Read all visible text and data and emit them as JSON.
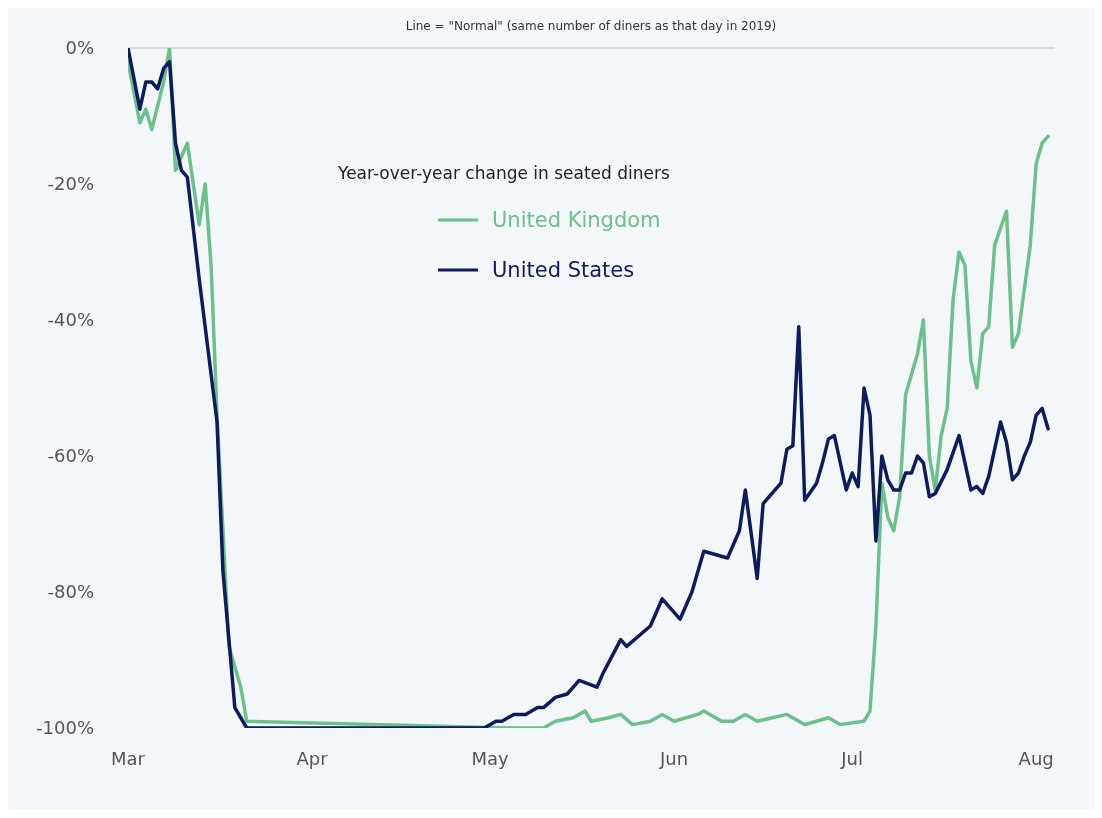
{
  "chart_data": {
    "type": "line",
    "title": "Year-over-year change in seated diners",
    "xlim": [
      "--03-01",
      "--08-04"
    ],
    "xticks": [
      {
        "value": "--03-01",
        "label": "Mar"
      },
      {
        "value": "--04-01",
        "label": "Apr"
      },
      {
        "value": "--05-01",
        "label": "May"
      },
      {
        "value": "--06-01",
        "label": "Jun"
      },
      {
        "value": "--07-01",
        "label": "Jul"
      },
      {
        "value": "--08-01",
        "label": "Aug"
      }
    ],
    "ylim": [
      -100,
      0
    ],
    "yticks": [
      {
        "value": 0,
        "label": "0%"
      },
      {
        "value": -20,
        "label": "-20%"
      },
      {
        "value": -40,
        "label": "-40%"
      },
      {
        "value": -60,
        "label": "-60%"
      },
      {
        "value": -80,
        "label": "-80%"
      },
      {
        "value": -100,
        "label": "-100%"
      }
    ],
    "ref_lines": [
      {
        "axis": "y",
        "value": 0,
        "label": "Line = \"Normal\" (same number of diners as that day in 2019)",
        "color": "#d9dde0"
      }
    ],
    "legend": "top",
    "marker": "none",
    "line_style": "solid",
    "series": [
      {
        "name": "United Kingdom",
        "color": "#6dbf8b",
        "x": [
          "--03-01",
          "--03-03",
          "--03-04",
          "--03-05",
          "--03-07",
          "--03-08",
          "--03-09",
          "--03-10",
          "--03-11",
          "--03-13",
          "--03-14",
          "--03-15",
          "--03-16",
          "--03-18",
          "--03-20",
          "--03-21",
          "--05-05",
          "--05-10",
          "--05-12",
          "--05-15",
          "--05-17",
          "--05-18",
          "--05-21",
          "--05-23",
          "--05-25",
          "--05-28",
          "--05-30",
          "--06-01",
          "--06-05",
          "--06-06",
          "--06-09",
          "--06-11",
          "--06-13",
          "--06-15",
          "--06-20",
          "--06-23",
          "--06-25",
          "--06-27",
          "--06-29",
          "--07-03",
          "--07-04",
          "--07-05",
          "--07-06",
          "--07-07",
          "--07-08",
          "--07-09",
          "--07-10",
          "--07-12",
          "--07-13",
          "--07-14",
          "--07-15",
          "--07-16",
          "--07-17",
          "--07-18",
          "--07-19",
          "--07-20",
          "--07-21",
          "--07-22",
          "--07-23",
          "--07-24",
          "--07-25",
          "--07-27",
          "--07-28",
          "--07-29",
          "--07-31",
          "--08-01",
          "--08-02",
          "--08-03"
        ],
        "values": [
          -2,
          -11,
          -9,
          -12,
          -5,
          0,
          -18,
          -16,
          -14,
          -26,
          -20,
          -32,
          -54,
          -88,
          -94,
          -99,
          -100,
          -100,
          -99,
          -98.5,
          -97.5,
          -99,
          -98.5,
          -98,
          -99.5,
          -99,
          -98,
          -99,
          -98,
          -97.5,
          -99,
          -99,
          -98,
          -99,
          -98,
          -99.5,
          -99,
          -98.5,
          -99.5,
          -99,
          -97.5,
          -85,
          -64,
          -69,
          -71,
          -66,
          -51,
          -45,
          -40,
          -60,
          -65,
          -57,
          -53,
          -37,
          -30,
          -32,
          -46,
          -50,
          -42,
          -41,
          -29,
          -24,
          -44,
          -42,
          -29,
          -17,
          -14,
          -13
        ]
      },
      {
        "name": "United States",
        "color": "#0f1c5a",
        "x": [
          "--03-01",
          "--03-03",
          "--03-04",
          "--03-05",
          "--03-06",
          "--03-07",
          "--03-08",
          "--03-09",
          "--03-10",
          "--03-11",
          "--03-13",
          "--03-15",
          "--03-16",
          "--03-17",
          "--03-18",
          "--03-19",
          "--03-21",
          "--04-30",
          "--05-02",
          "--05-03",
          "--05-05",
          "--05-07",
          "--05-09",
          "--05-10",
          "--05-12",
          "--05-14",
          "--05-16",
          "--05-19",
          "--05-20",
          "--05-23",
          "--05-24",
          "--05-28",
          "--05-30",
          "--06-02",
          "--06-04",
          "--06-06",
          "--06-10",
          "--06-12",
          "--06-13",
          "--06-15",
          "--06-16",
          "--06-19",
          "--06-20",
          "--06-21",
          "--06-22",
          "--06-23",
          "--06-25",
          "--06-26",
          "--06-27",
          "--06-28",
          "--06-30",
          "--07-01",
          "--07-02",
          "--07-03",
          "--07-04",
          "--07-05",
          "--07-06",
          "--07-07",
          "--07-08",
          "--07-09",
          "--07-10",
          "--07-11",
          "--07-12",
          "--07-13",
          "--07-14",
          "--07-15",
          "--07-17",
          "--07-19",
          "--07-21",
          "--07-22",
          "--07-23",
          "--07-24",
          "--07-26",
          "--07-27",
          "--07-28",
          "--07-29",
          "--07-30",
          "--07-31",
          "--08-01",
          "--08-02",
          "--08-03"
        ],
        "values": [
          0,
          -9,
          -5,
          -5,
          -6,
          -3,
          -2,
          -14,
          -18,
          -19,
          -34,
          -48,
          -55,
          -77,
          -87,
          -97,
          -100,
          -100,
          -99,
          -99,
          -98,
          -98,
          -97,
          -97,
          -95.5,
          -95,
          -93,
          -94,
          -92,
          -87,
          -88,
          -85,
          -81,
          -84,
          -80,
          -74,
          -75,
          -71,
          -65,
          -78,
          -67,
          -64,
          -59,
          -58.5,
          -41,
          -66.5,
          -64,
          -61,
          -57.5,
          -57,
          -65,
          -62.5,
          -64.5,
          -50,
          -54,
          -72.5,
          -60,
          -63.5,
          -65,
          -65,
          -62.5,
          -62.5,
          -60,
          -61,
          -66,
          -65.5,
          -62,
          -57,
          -65,
          -64.5,
          -65.5,
          -63,
          -55,
          -58,
          -63.5,
          -62.5,
          -60,
          -58,
          -54,
          -53,
          -56
        ]
      }
    ]
  }
}
